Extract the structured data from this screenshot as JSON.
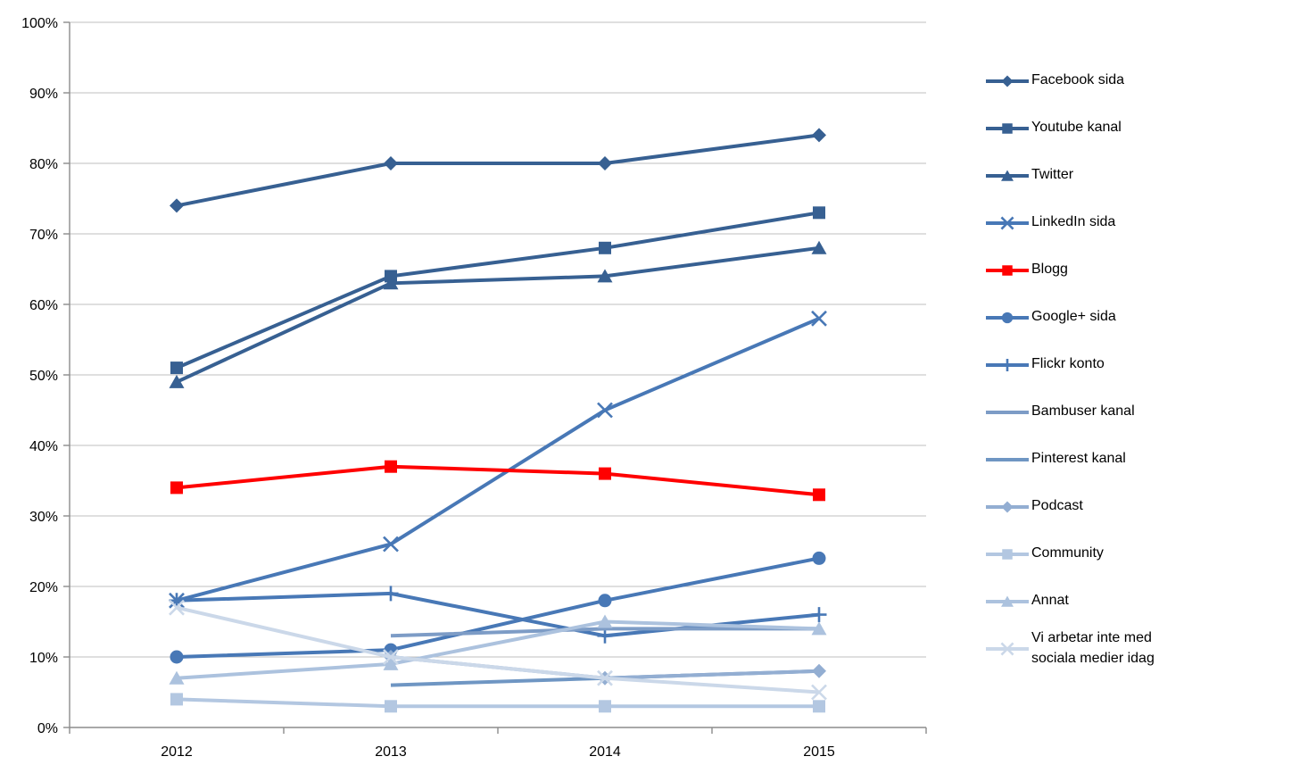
{
  "chart_data": {
    "type": "line",
    "title": "",
    "categories": [
      "2012",
      "2013",
      "2014",
      "2015"
    ],
    "y_axis": {
      "min": 0,
      "max": 100,
      "step": 10,
      "tick_labels": [
        "0%",
        "10%",
        "20%",
        "30%",
        "40%",
        "50%",
        "60%",
        "70%",
        "80%",
        "90%",
        "100%"
      ]
    },
    "grid": true,
    "legend_position": "right",
    "series": [
      {
        "name": "Facebook sida",
        "marker": "diamond",
        "color": "#376092",
        "values": [
          74,
          80,
          80,
          84
        ]
      },
      {
        "name": "Youtube kanal",
        "marker": "square",
        "color": "#376092",
        "values": [
          51,
          64,
          68,
          73
        ]
      },
      {
        "name": "Twitter",
        "marker": "triangle",
        "color": "#376092",
        "values": [
          49,
          63,
          64,
          68
        ]
      },
      {
        "name": "LinkedIn sida",
        "marker": "x",
        "color": "#4878B6",
        "values": [
          18,
          26,
          45,
          58
        ]
      },
      {
        "name": "Blogg",
        "marker": "square",
        "color": "#FF0000",
        "values": [
          34,
          37,
          36,
          33
        ]
      },
      {
        "name": "Google+ sida",
        "marker": "circle",
        "color": "#4878B6",
        "values": [
          10,
          11,
          18,
          24
        ]
      },
      {
        "name": "Flickr konto",
        "marker": "plus",
        "color": "#4878B6",
        "values": [
          18,
          19,
          13,
          16
        ]
      },
      {
        "name": "Bambuser kanal",
        "marker": "none",
        "color": "#7D9CC6",
        "values": [
          null,
          13,
          14,
          14
        ]
      },
      {
        "name": "Pinterest kanal",
        "marker": "none",
        "color": "#6F96C3",
        "values": [
          null,
          6,
          7,
          8
        ]
      },
      {
        "name": "Podcast",
        "marker": "diamond",
        "color": "#93AED2",
        "values": [
          null,
          10,
          7,
          8
        ]
      },
      {
        "name": "Community",
        "marker": "square",
        "color": "#B3C7E1",
        "values": [
          4,
          3,
          3,
          3
        ]
      },
      {
        "name": "Annat",
        "marker": "triangle",
        "color": "#ACC2DE",
        "values": [
          7,
          9,
          15,
          14
        ]
      },
      {
        "name": "Vi arbetar inte med sociala medier idag",
        "marker": "x",
        "color": "#CBD8E9",
        "values": [
          17,
          10,
          7,
          5
        ]
      }
    ]
  },
  "colors": {
    "background": "#FFFFFF",
    "gridline": "#BFBFBF",
    "axis": "#8C8C8C",
    "text": "#000000",
    "highlight_series": "#FF0000"
  }
}
